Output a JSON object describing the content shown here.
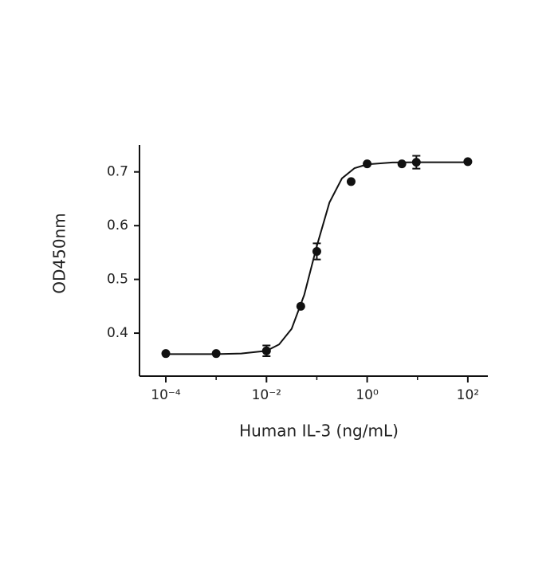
{
  "chart_data": {
    "type": "scatter",
    "x_label": "Human IL-3 (ng/mL)",
    "y_label": "OD450nm",
    "x_log": true,
    "x": [
      0.0001,
      0.001,
      0.01,
      0.048,
      0.1,
      0.48,
      1,
      4.9,
      9.5,
      100
    ],
    "series": [
      {
        "values": [
          0.362,
          0.362,
          0.367,
          0.45,
          0.552,
          0.682,
          0.715,
          0.715,
          0.718,
          0.719
        ],
        "errors": [
          null,
          null,
          0.01,
          null,
          0.015,
          null,
          null,
          null,
          0.012,
          null
        ],
        "color": "#111111"
      }
    ],
    "fit": {
      "x": [
        0.0001,
        0.001,
        0.00316,
        0.01,
        0.0178,
        0.0316,
        0.0562,
        0.1,
        0.178,
        0.316,
        0.562,
        1,
        3.16,
        10,
        100
      ],
      "values": [
        0.361,
        0.361,
        0.362,
        0.367,
        0.379,
        0.408,
        0.471,
        0.562,
        0.643,
        0.688,
        0.707,
        0.714,
        0.7175,
        0.718,
        0.718
      ],
      "color": "#111111"
    },
    "xlim": [
      3e-05,
      250
    ],
    "ylim": [
      0.32,
      0.75
    ],
    "xticks": [
      {
        "value": 0.0001,
        "label": "10⁻⁴"
      },
      {
        "value": 0.01,
        "label": "10⁻²"
      },
      {
        "value": 1,
        "label": "10⁰"
      },
      {
        "value": 100,
        "label": "10²"
      }
    ],
    "xminor": [
      0.001,
      0.1,
      10
    ],
    "yticks": [
      0.4,
      0.5,
      0.6,
      0.7
    ]
  }
}
